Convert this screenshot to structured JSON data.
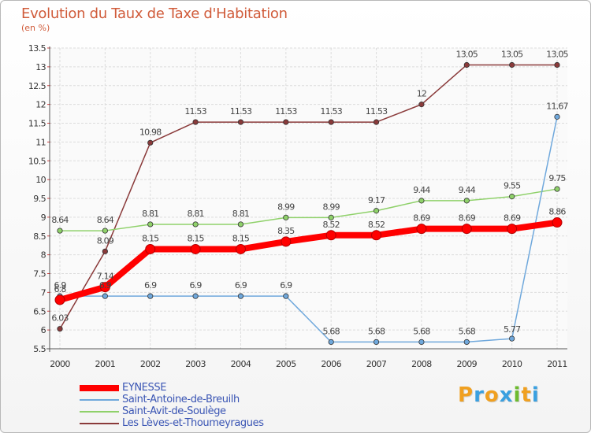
{
  "header": {
    "title": "Evolution du Taux de Taxe d'Habitation",
    "unit": "(en %)"
  },
  "logo": {
    "text": "Proxiti"
  },
  "chart_data": {
    "type": "line",
    "title": "Evolution du Taux de Taxe d'Habitation",
    "ylabel": "(en %)",
    "xlabel": "",
    "x": [
      "2000",
      "2001",
      "2002",
      "2003",
      "2004",
      "2005",
      "2006",
      "2007",
      "2008",
      "2009",
      "2010",
      "2011"
    ],
    "ylim": [
      5.5,
      13.5
    ],
    "yticks": [
      "5.5",
      "6",
      "6.5",
      "7",
      "7.5",
      "8",
      "8.5",
      "9",
      "9.5",
      "10",
      "10.5",
      "11",
      "11.5",
      "12",
      "12.5",
      "13",
      "13.5"
    ],
    "grid": true,
    "legend_position": "bottom-left",
    "series": [
      {
        "name": "EYNESSE",
        "color": "#ff0000",
        "values": [
          6.8,
          7.14,
          8.15,
          8.15,
          8.15,
          8.35,
          8.52,
          8.52,
          8.69,
          8.69,
          8.69,
          8.86
        ],
        "labels": [
          "6.8",
          "7.14",
          "8.15",
          "8.15",
          "8.15",
          "8.35",
          "8.52",
          "8.52",
          "8.69",
          "8.69",
          "8.69",
          "8.86"
        ]
      },
      {
        "name": "Saint-Antoine-de-Breuilh",
        "color": "#6fa8dc",
        "values": [
          6.9,
          6.9,
          6.9,
          6.9,
          6.9,
          6.9,
          5.68,
          5.68,
          5.68,
          5.68,
          5.77,
          11.67
        ],
        "labels": [
          "6.9",
          "6.9",
          "6.9",
          "6.9",
          "6.9",
          "6.9",
          "5.68",
          "5.68",
          "5.68",
          "5.68",
          "5.77",
          "11.67"
        ]
      },
      {
        "name": "Saint-Avit-de-Soulège",
        "color": "#8fd16a",
        "values": [
          8.64,
          8.64,
          8.81,
          8.81,
          8.81,
          8.99,
          8.99,
          9.17,
          9.44,
          9.44,
          9.55,
          9.75
        ],
        "labels": [
          "8.64",
          "8.64",
          "8.81",
          "8.81",
          "8.81",
          "8.99",
          "8.99",
          "9.17",
          "9.44",
          "9.44",
          "9.55",
          "9.75"
        ]
      },
      {
        "name": "Les Lèves-et-Thoumeyragues",
        "color": "#8a3a3a",
        "values": [
          6.03,
          8.09,
          10.98,
          11.53,
          11.53,
          11.53,
          11.53,
          11.53,
          12,
          13.05,
          13.05,
          13.05
        ],
        "labels": [
          "6.03",
          "8.09",
          "10.98",
          "11.53",
          "11.53",
          "11.53",
          "11.53",
          "11.53",
          "12",
          "13.05",
          "13.05",
          "13.05"
        ]
      }
    ]
  }
}
